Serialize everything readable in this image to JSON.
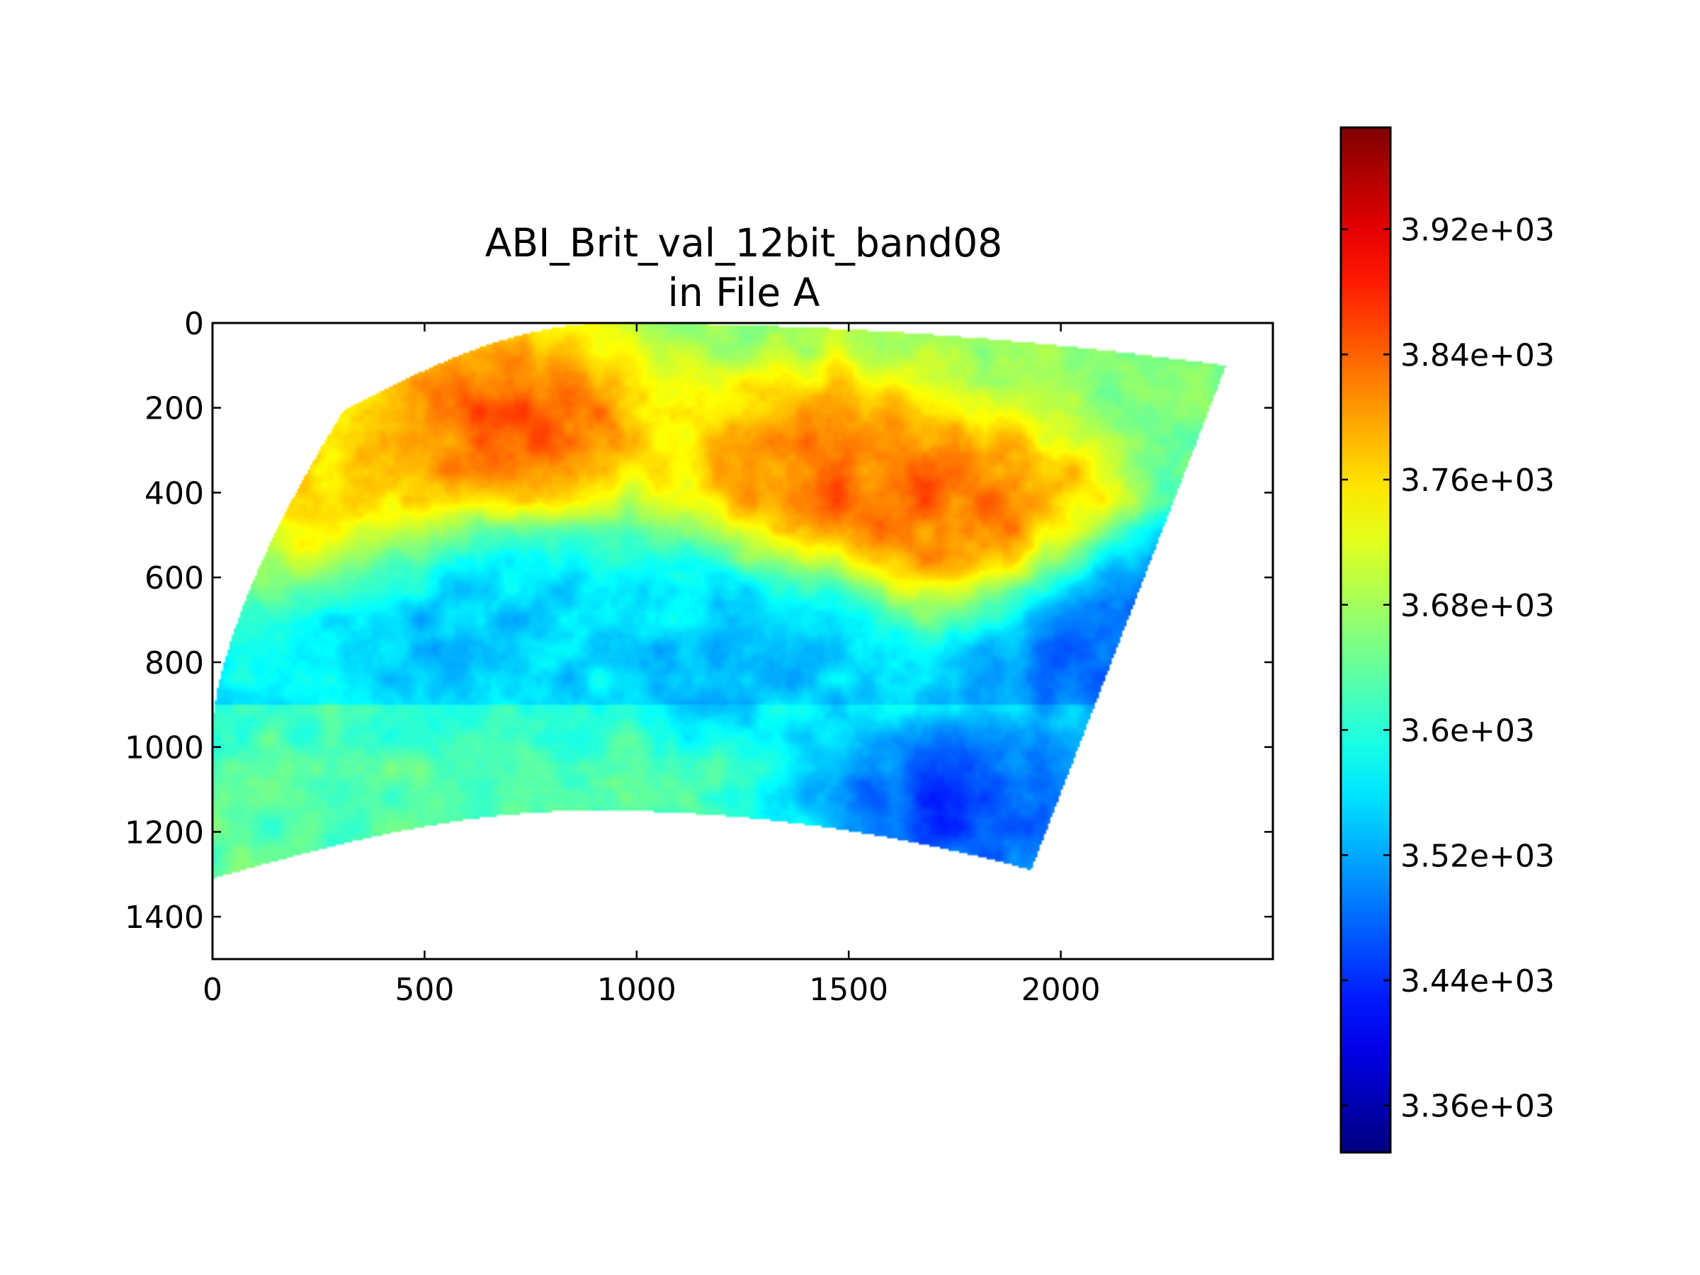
{
  "chart_data": {
    "type": "heatmap",
    "title_lines": [
      "ABI_Brit_val_12bit_band08",
      "in File A"
    ],
    "xlabel": "",
    "ylabel": "",
    "xlim": [
      0,
      2500
    ],
    "ylim": [
      1500,
      0
    ],
    "x_ticks": [
      0,
      500,
      1000,
      1500,
      2000
    ],
    "x_tick_labels": [
      "0",
      "500",
      "1000",
      "1500",
      "2000"
    ],
    "y_ticks": [
      0,
      200,
      400,
      600,
      800,
      1000,
      1200,
      1400
    ],
    "y_tick_labels": [
      "0",
      "200",
      "400",
      "600",
      "800",
      "1000",
      "1200",
      "1400"
    ],
    "grid": false,
    "colormap": "jet",
    "colorbar": {
      "vmin": 3330,
      "vmax": 3985,
      "ticks": [
        3360,
        3440,
        3520,
        3600,
        3680,
        3760,
        3840,
        3920
      ],
      "tick_labels": [
        "3.36e+03",
        "3.44e+03",
        "3.52e+03",
        "3.6e+03",
        "3.68e+03",
        "3.76e+03",
        "3.84e+03",
        "3.92e+03"
      ]
    },
    "data_region_corners": {
      "top_left": [
        310,
        205
      ],
      "top_mid": [
        940,
        0
      ],
      "top_right": [
        2390,
        100
      ],
      "right_mid": [
        2150,
        700
      ],
      "bottom_right": [
        1930,
        1290
      ],
      "bottom_mid": [
        900,
        1150
      ],
      "bottom_left": [
        0,
        1310
      ],
      "left_mid": [
        0,
        950
      ]
    },
    "features": [
      {
        "desc": "warm band north-west",
        "x": 700,
        "y": 250,
        "value": 3900
      },
      {
        "desc": "warm band north-centre",
        "x": 1450,
        "y": 350,
        "value": 3880
      },
      {
        "desc": "warm cloud east",
        "x": 1800,
        "y": 470,
        "value": 3890
      },
      {
        "desc": "cold region south-east",
        "x": 1750,
        "y": 1150,
        "value": 3420
      },
      {
        "desc": "cold spot east",
        "x": 2130,
        "y": 700,
        "value": 3440
      },
      {
        "desc": "blue patch centre",
        "x": 1300,
        "y": 760,
        "value": 3530
      },
      {
        "desc": "blue patch west",
        "x": 600,
        "y": 660,
        "value": 3530
      },
      {
        "desc": "warm edge north-west",
        "x": 300,
        "y": 400,
        "value": 3800
      }
    ]
  }
}
